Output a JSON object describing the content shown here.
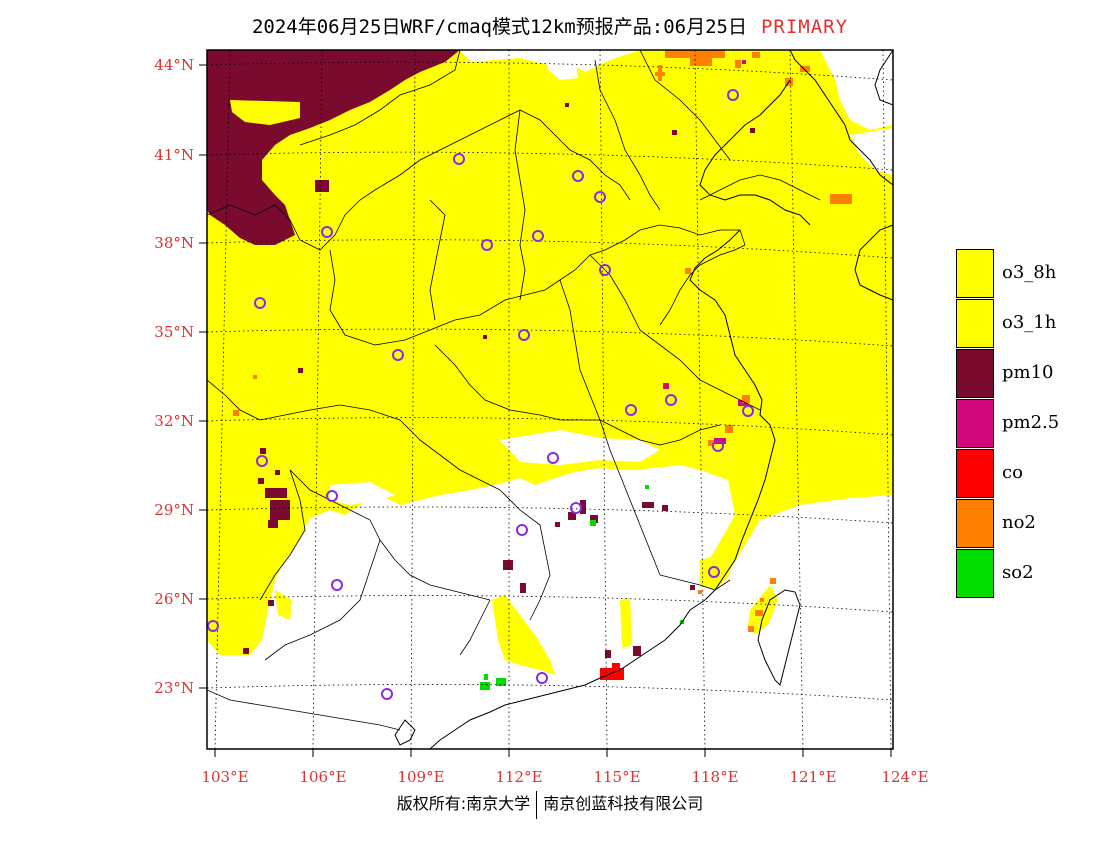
{
  "title": {
    "main": "2024年06月25日WRF/cmaq模式12km预报产品:06月25日",
    "tag": "PRIMARY"
  },
  "axes": {
    "lat_labels": [
      "44°N",
      "41°N",
      "38°N",
      "35°N",
      "32°N",
      "29°N",
      "26°N",
      "23°N"
    ],
    "lon_labels": [
      "103°E",
      "106°E",
      "109°E",
      "112°E",
      "115°E",
      "118°E",
      "121°E",
      "124°E"
    ]
  },
  "legend": {
    "items": [
      {
        "label": "o3_8h",
        "color": "#ffff00"
      },
      {
        "label": "o3_1h",
        "color": "#ffff00"
      },
      {
        "label": "pm10",
        "color": "#7a0a2e"
      },
      {
        "label": "pm2.5",
        "color": "#d3087c"
      },
      {
        "label": "co",
        "color": "#ff0000"
      },
      {
        "label": "no2",
        "color": "#ff7f00"
      },
      {
        "label": "so2",
        "color": "#00dd00"
      }
    ]
  },
  "colors": {
    "o3": "#ffff00",
    "pm10": "#7a0a2e",
    "pm25": "#d3087c",
    "co": "#ff0000",
    "no2": "#ff7f00",
    "so2": "#00dd00",
    "station_marker": "#8a2be2",
    "label_red": "#e53030"
  },
  "footer": {
    "left": "版权所有:南京大学",
    "right": "南京创蓝科技有限公司"
  }
}
